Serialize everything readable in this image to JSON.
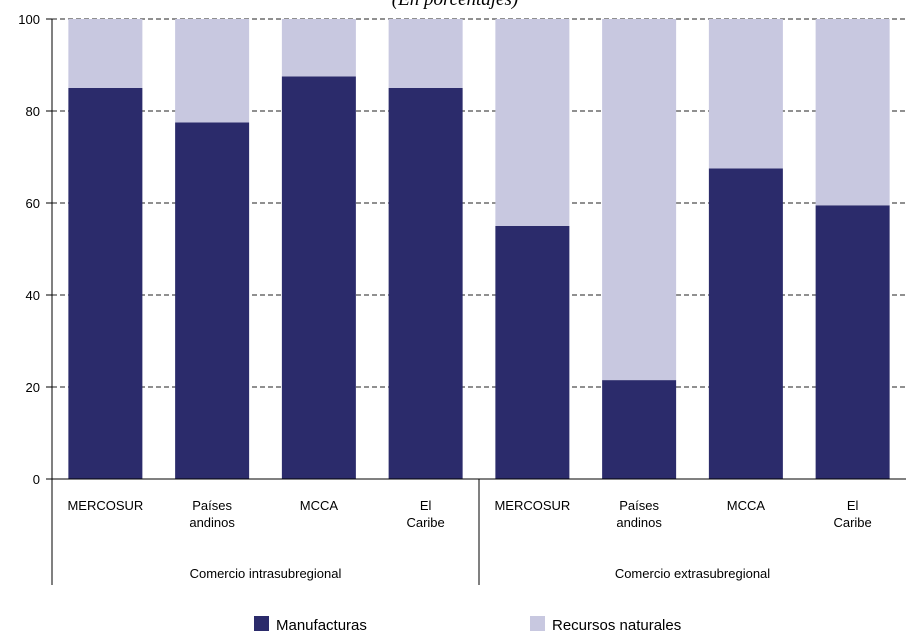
{
  "chart_data": {
    "type": "bar",
    "stacked": true,
    "subtitle": "(En porcentajes)",
    "categories": [
      "MERCOSUR",
      "Países andinos",
      "MCCA",
      "El Caribe",
      "MERCOSUR",
      "Países andinos",
      "MCCA",
      "El Caribe"
    ],
    "groups": [
      {
        "label": "Comercio intrasubregional",
        "size": 4
      },
      {
        "label": "Comercio extrasubregional",
        "size": 4
      }
    ],
    "series": [
      {
        "name": "Manufacturas",
        "color": "#2b2b6b",
        "values": [
          85,
          77.5,
          87.5,
          85,
          55,
          21.5,
          67.5,
          59.5
        ]
      },
      {
        "name": "Recursos naturales",
        "color": "#c8c8e0",
        "values": [
          15,
          22.5,
          12.5,
          15,
          45,
          78.5,
          32.5,
          40.5
        ]
      }
    ],
    "ylim": [
      0,
      100
    ],
    "yticks": [
      0,
      20,
      40,
      60,
      80,
      100
    ],
    "grid": true,
    "legend": "bottom"
  }
}
